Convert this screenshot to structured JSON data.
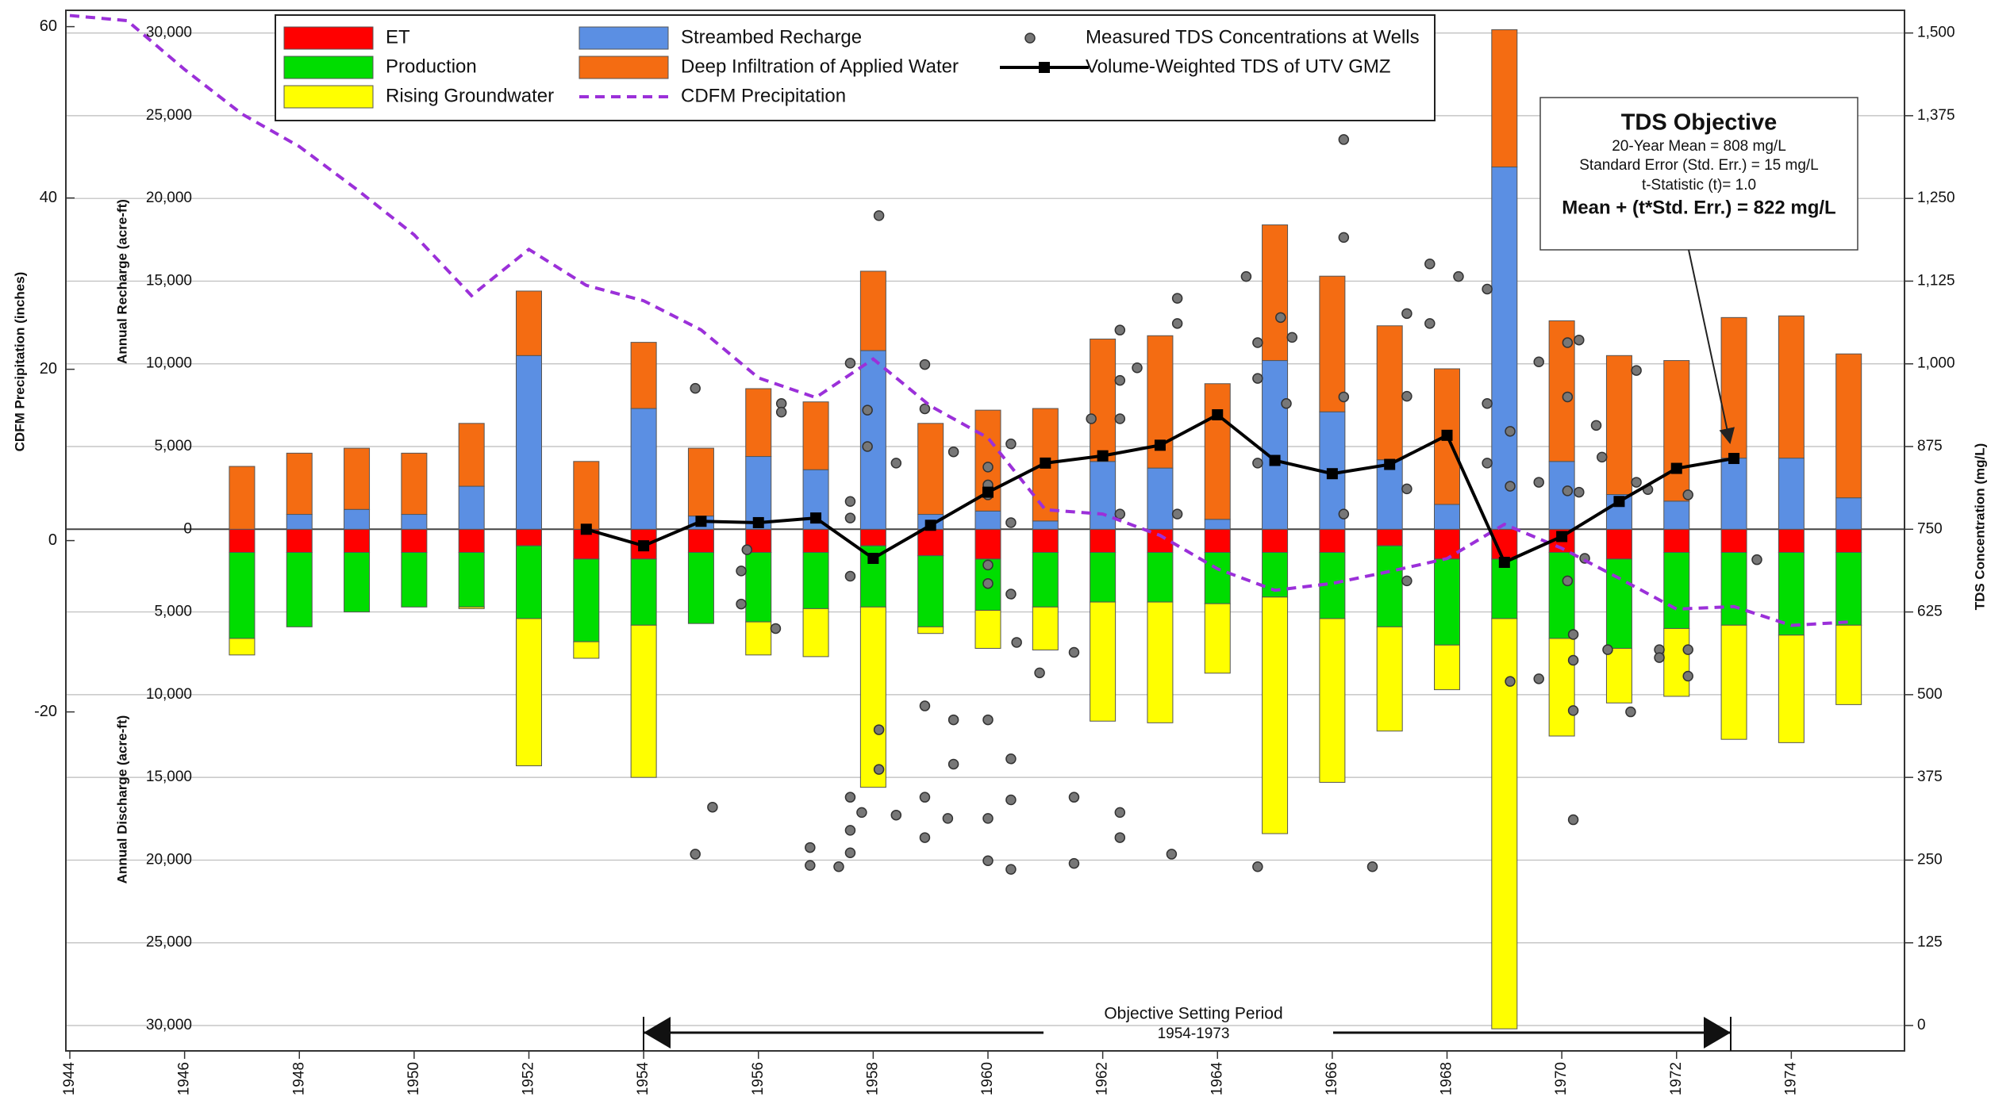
{
  "chart_data": {
    "type": "bar",
    "x": [
      1947,
      1948,
      1949,
      1950,
      1951,
      1952,
      1953,
      1954,
      1955,
      1956,
      1957,
      1958,
      1959,
      1960,
      1961,
      1962,
      1963,
      1964,
      1965,
      1966,
      1967,
      1968,
      1969,
      1970,
      1971,
      1972,
      1973,
      1974,
      1975
    ],
    "xlim": [
      1944,
      1976
    ],
    "xticks": [
      1944,
      1946,
      1948,
      1950,
      1952,
      1954,
      1956,
      1958,
      1960,
      1962,
      1964,
      1966,
      1968,
      1970,
      1972,
      1974
    ],
    "ylabel": "Annual Recharge (acre-ft)",
    "ylabel_lower": "Annual Discharge (acre-ft)",
    "ylim": [
      -30000,
      30000
    ],
    "yticks": [
      {
        "value": 30000,
        "label": "30,000"
      },
      {
        "value": 25000,
        "label": "25,000"
      },
      {
        "value": 20000,
        "label": "20,000"
      },
      {
        "value": 15000,
        "label": "15,000"
      },
      {
        "value": 10000,
        "label": "10,000"
      },
      {
        "value": 5000,
        "label": "5,000"
      },
      0,
      {
        "value": -5000,
        "label": "5,000"
      },
      {
        "value": -10000,
        "label": "10,000"
      },
      {
        "value": -15000,
        "label": "15,000"
      },
      {
        "value": -20000,
        "label": "20,000"
      },
      {
        "value": -25000,
        "label": "25,000"
      },
      {
        "value": -30000,
        "label": "30,000"
      }
    ],
    "y2label": "TDS Concentration (mg/L)",
    "y2lim": [
      0,
      1500
    ],
    "y2ticks": [
      0,
      125,
      250,
      375,
      500,
      625,
      750,
      875,
      {
        "value": 1000,
        "label": "1,000"
      },
      {
        "value": 1125,
        "label": "1,125"
      },
      {
        "value": 1250,
        "label": "1,250"
      },
      {
        "value": 1375,
        "label": "1,375"
      },
      {
        "value": 1500,
        "label": "1,500"
      }
    ],
    "y3label": "CDFM Precipitation (inches)",
    "y3lim": [
      -20,
      60
    ],
    "y3ticks": [
      -20,
      0,
      20,
      40,
      60
    ],
    "grid": true,
    "legend": "top",
    "series": [
      {
        "name": "ET",
        "type": "bar",
        "color": "#ff0000",
        "values": [
          -1400,
          -1400,
          -1400,
          -1400,
          -1400,
          -1000,
          -1800,
          -1800,
          -1400,
          -1400,
          -1400,
          -1000,
          -1600,
          -1800,
          -1400,
          -1400,
          -1400,
          -1400,
          -1400,
          -1400,
          -1000,
          -1800,
          -1800,
          -1400,
          -1800,
          -1400,
          -1400,
          -1400,
          -1400
        ]
      },
      {
        "name": "Production",
        "type": "bar",
        "color": "#00dd00",
        "values": [
          -5200,
          -4500,
          -3600,
          -3300,
          -3300,
          -4400,
          -5000,
          -4000,
          -4300,
          -4200,
          -3400,
          -3700,
          -4300,
          -3100,
          -3300,
          -3000,
          -3000,
          -3100,
          -2700,
          -4000,
          -4900,
          -5200,
          -3600,
          -5200,
          -5400,
          -4600,
          -4400,
          -5000,
          -4400
        ]
      },
      {
        "name": "Rising Groundwater",
        "type": "bar",
        "color": "#ffff00",
        "values": [
          -1000,
          0,
          0,
          0,
          -100,
          -8900,
          -1000,
          -9200,
          0,
          -2000,
          -2900,
          -10900,
          -400,
          -2300,
          -2600,
          -7200,
          -7300,
          -4200,
          -14300,
          -9900,
          -6300,
          -2700,
          -24800,
          -5900,
          -3300,
          -4100,
          -6900,
          -6500,
          -4800
        ]
      },
      {
        "name": "Streambed Recharge",
        "type": "bar",
        "color": "#5b8fe3",
        "values": [
          0,
          900,
          1200,
          900,
          2600,
          10500,
          0,
          7300,
          800,
          4400,
          3600,
          10800,
          900,
          1100,
          500,
          4100,
          3700,
          600,
          10200,
          7100,
          4200,
          1500,
          21900,
          4100,
          2100,
          1700,
          4300,
          4300,
          1900
        ]
      },
      {
        "name": "Deep Infiltration of Applied Water",
        "type": "bar",
        "color": "#f46c12",
        "values": [
          3800,
          3700,
          3700,
          3700,
          3800,
          3900,
          4100,
          4000,
          4100,
          4100,
          4100,
          4800,
          5500,
          6100,
          6800,
          7400,
          8000,
          8200,
          8200,
          8200,
          8100,
          8200,
          8300,
          8500,
          8400,
          8500,
          8500,
          8600,
          8700
        ]
      },
      {
        "name": "CDFM Precipitation",
        "type": "line",
        "dash": true,
        "axis": "y3",
        "color": "#9b30d9",
        "x": [
          1944,
          1945,
          1946,
          1947,
          1948,
          1949,
          1950,
          1951,
          1952,
          1953,
          1954,
          1955,
          1956,
          1957,
          1958,
          1959,
          1960,
          1961,
          1962,
          1963,
          1964,
          1965,
          1966,
          1967,
          1968,
          1969,
          1970,
          1971,
          1972,
          1973,
          1974,
          1975
        ],
        "values": [
          61.3,
          60.7,
          55,
          49.8,
          46,
          41,
          35.7,
          28.6,
          34,
          29.8,
          28,
          24.6,
          19,
          16.7,
          21.2,
          15.7,
          12,
          3.6,
          3.1,
          0.6,
          -3.3,
          -5.8,
          -5,
          -3.6,
          -2.1,
          1.9,
          -0.9,
          -4.4,
          -8,
          -7.7,
          -9.9,
          -9.5
        ]
      },
      {
        "name": "Measured TDS Concentrations at Wells",
        "type": "scatter",
        "axis": "y2",
        "color": "#777777",
        "x": [
          1954.9,
          1955.2,
          1954.9,
          1955.7,
          1955.7,
          1955.8,
          1956.4,
          1956.4,
          1956.3,
          1956.9,
          1956.9,
          1957.4,
          1957.6,
          1957.6,
          1957.6,
          1957.6,
          1957.6,
          1957.6,
          1957.6,
          1957.8,
          1957.9,
          1957.9,
          1958.1,
          1958.1,
          1958.1,
          1958.4,
          1958.4,
          1958.9,
          1958.9,
          1958.9,
          1958.9,
          1958.9,
          1959.4,
          1959.4,
          1959.4,
          1959.3,
          1960.0,
          1960.0,
          1960.0,
          1960.0,
          1960.0,
          1960.0,
          1960.0,
          1960.0,
          1960.4,
          1960.4,
          1960.4,
          1960.4,
          1960.4,
          1960.4,
          1960.5,
          1960.9,
          1961.5,
          1961.5,
          1961.5,
          1961.8,
          1962.3,
          1962.3,
          1962.3,
          1962.3,
          1962.3,
          1962.3,
          1962.6,
          1963.2,
          1963.3,
          1963.3,
          1963.3,
          1964.5,
          1964.7,
          1964.7,
          1964.7,
          1964.7,
          1965.1,
          1965.2,
          1965.3,
          1966.2,
          1966.2,
          1966.2,
          1966.2,
          1966.7,
          1967.3,
          1967.3,
          1967.3,
          1967.3,
          1967.7,
          1967.7,
          1968.2,
          1968.7,
          1968.7,
          1968.7,
          1969.1,
          1969.1,
          1969.1,
          1969.6,
          1969.6,
          1969.6,
          1970.1,
          1970.1,
          1970.1,
          1970.1,
          1970.2,
          1970.2,
          1970.2,
          1970.2,
          1970.3,
          1970.3,
          1970.4,
          1970.6,
          1970.7,
          1970.8,
          1971.2,
          1971.3,
          1971.3,
          1971.5,
          1971.7,
          1971.7,
          1972.2,
          1972.2,
          1972.2,
          1973.4
        ],
        "values": [
          963,
          330,
          259,
          687,
          637,
          719,
          940,
          927,
          600,
          269,
          242,
          240,
          1001,
          792,
          767,
          679,
          345,
          295,
          261,
          322,
          930,
          875,
          1224,
          447,
          387,
          850,
          318,
          999,
          932,
          345,
          284,
          483,
          867,
          462,
          395,
          313,
          844,
          817,
          802,
          696,
          668,
          462,
          313,
          249,
          879,
          760,
          652,
          403,
          341,
          236,
          579,
          533,
          564,
          345,
          245,
          917,
          1051,
          975,
          917,
          773,
          322,
          284,
          994,
          259,
          1099,
          1061,
          773,
          1132,
          1032,
          978,
          850,
          240,
          1070,
          940,
          1040,
          1339,
          1191,
          950,
          773,
          240,
          1076,
          951,
          811,
          672,
          1151,
          1061,
          1132,
          1113,
          940,
          850,
          898,
          815,
          520,
          1003,
          821,
          524,
          1032,
          950,
          808,
          672,
          591,
          552,
          476,
          311,
          1036,
          806,
          706,
          907,
          859,
          568,
          474,
          990,
          821,
          810,
          568,
          556,
          802,
          568,
          528,
          704
        ]
      },
      {
        "name": "Volume-Weighted TDS of UTV GMZ",
        "type": "line",
        "marker": "square",
        "axis": "y2",
        "color": "#000000",
        "x": [
          1953,
          1954,
          1955,
          1956,
          1957,
          1958,
          1959,
          1960,
          1961,
          1962,
          1963,
          1964,
          1965,
          1966,
          1967,
          1968,
          1969,
          1970,
          1971,
          1972,
          1973
        ],
        "values": [
          750,
          725,
          762,
          760,
          767,
          706,
          756,
          806,
          850,
          861,
          877,
          923,
          854,
          834,
          848,
          892,
          700,
          739,
          792,
          842,
          857
        ]
      }
    ]
  },
  "annotations": {
    "objective": {
      "title": "TDS Objective",
      "mean": "20-Year Mean = 808 mg/L",
      "std_error": "Standard Error (Std. Err.) = 15 mg/L",
      "t_stat": "t-Statistic (t)= 1.0",
      "result": "Mean + (t*Std. Err.) = 822 mg/L"
    },
    "period": {
      "label": "Objective Setting Period",
      "years": "1954-1973"
    }
  }
}
